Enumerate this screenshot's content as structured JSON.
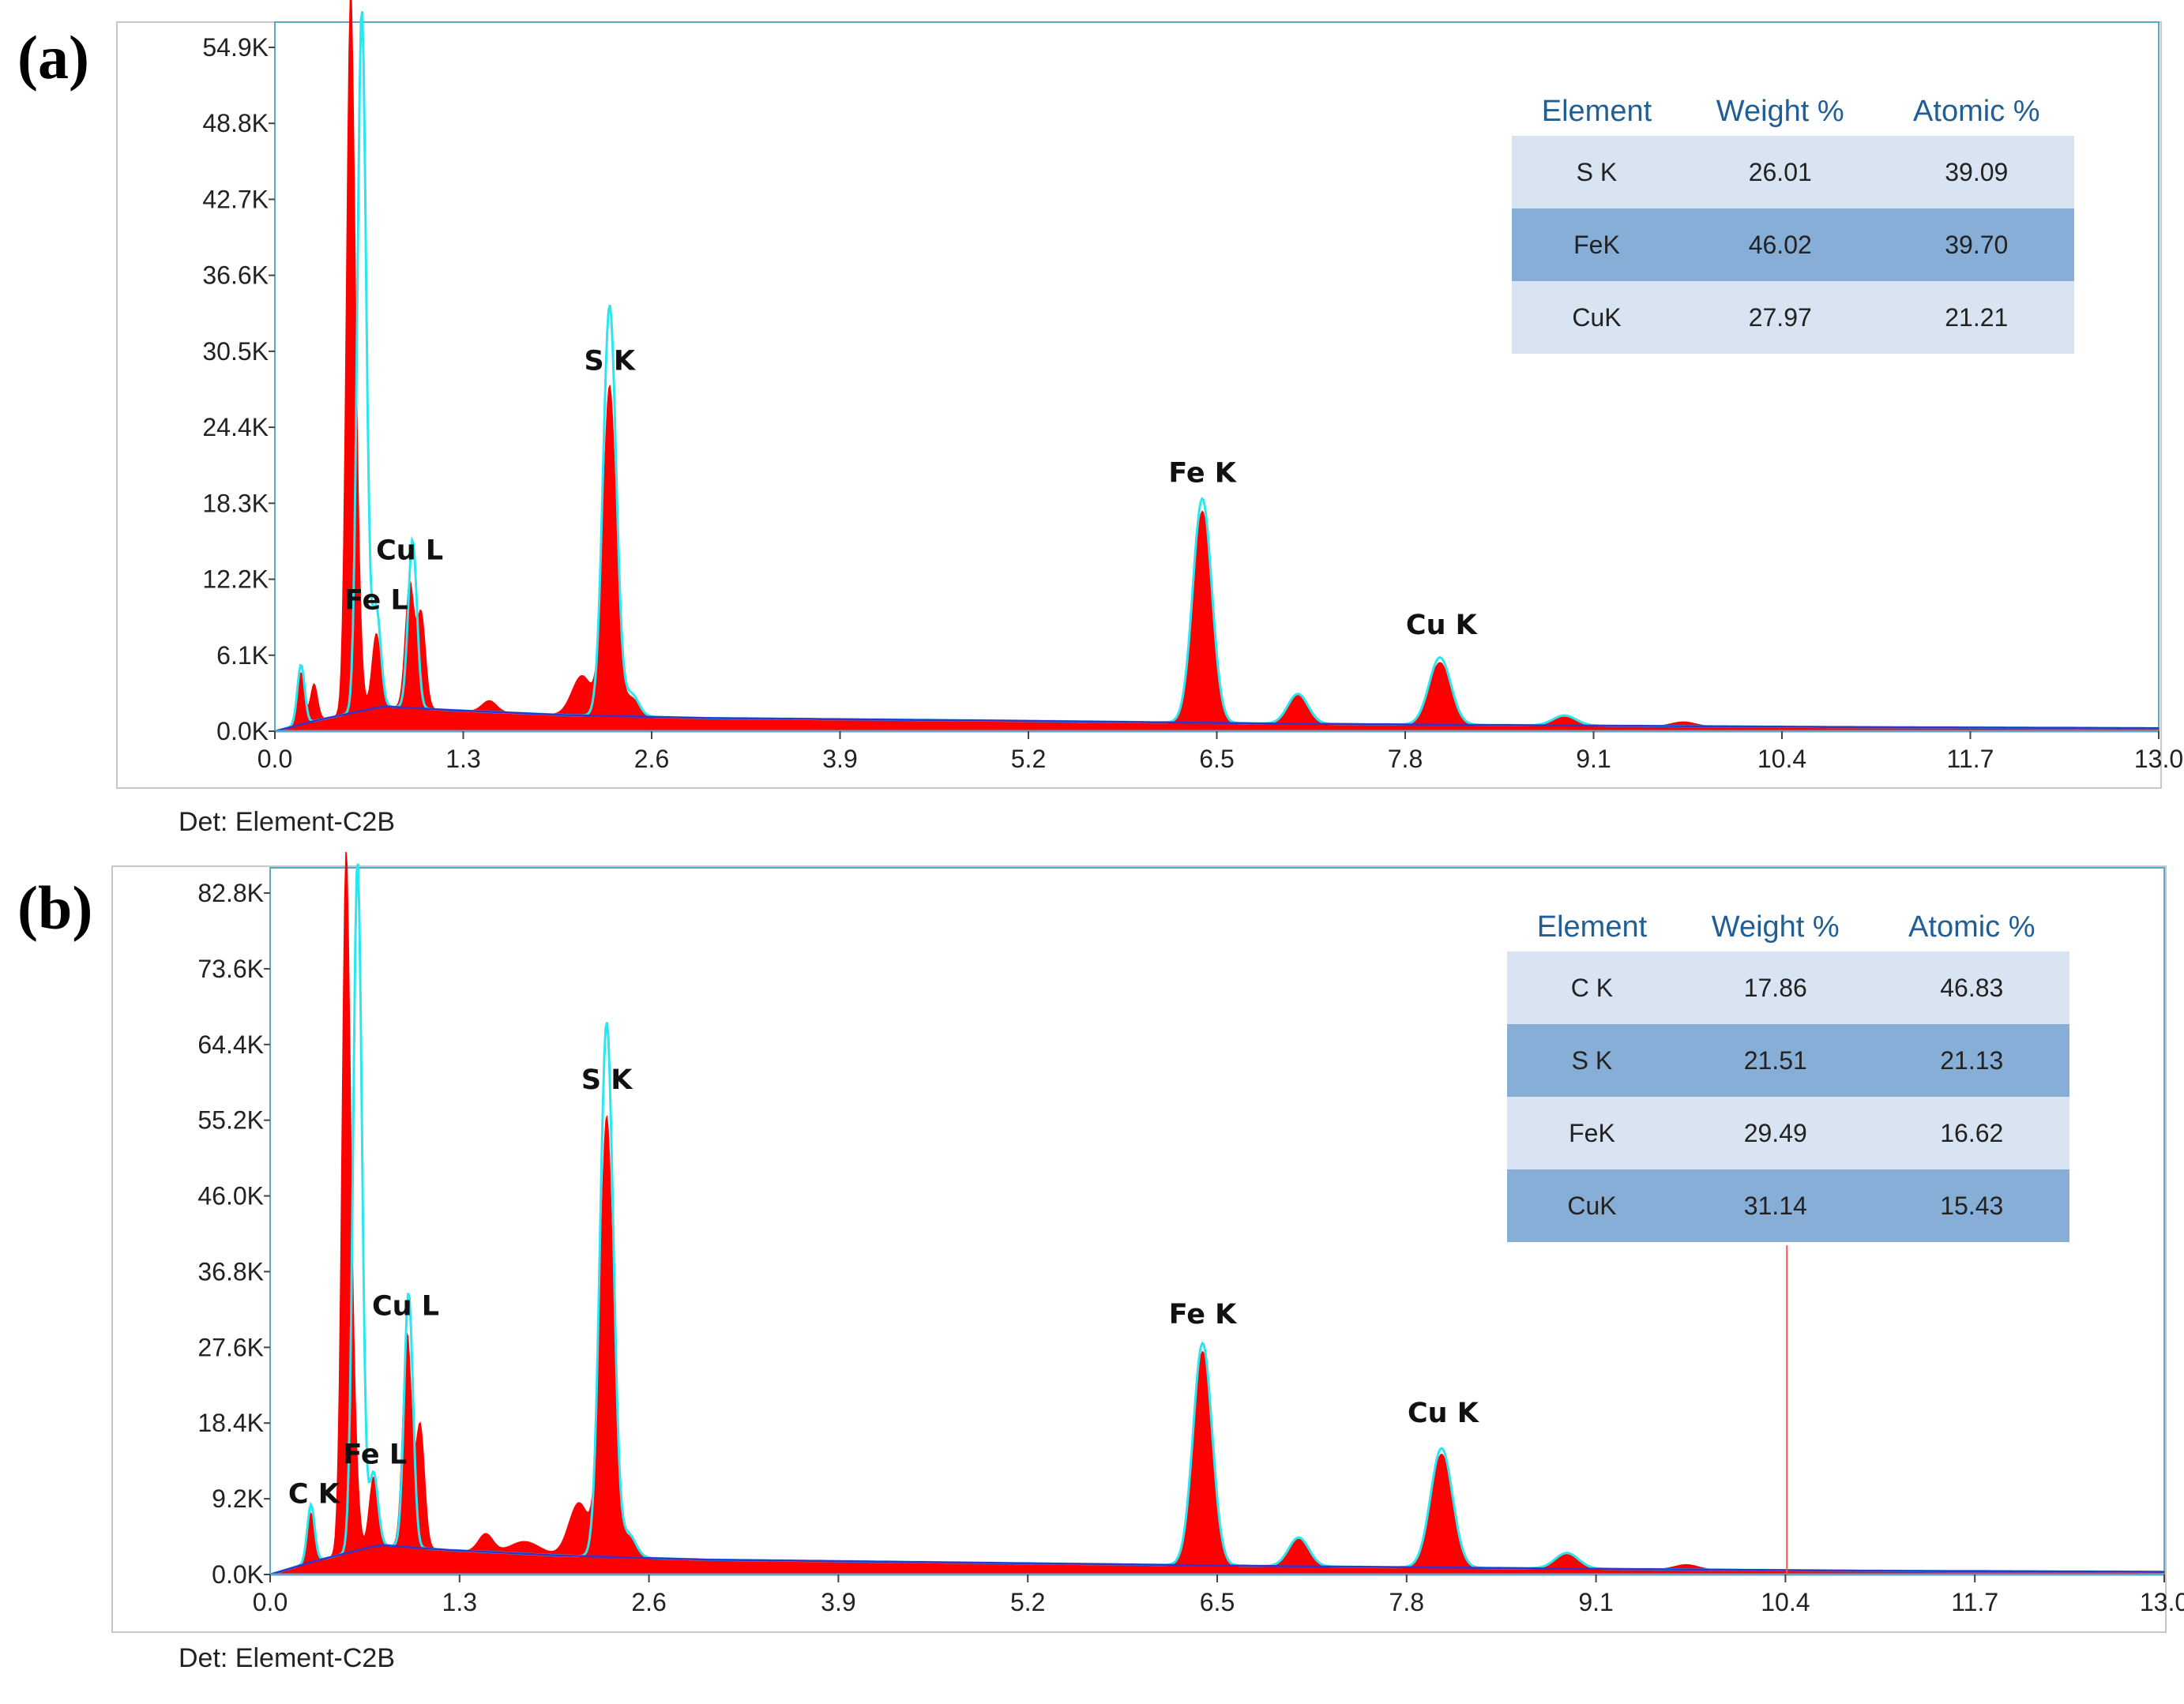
{
  "figure": {
    "panels": [
      {
        "id": "a",
        "label": "(a)",
        "detector": "Det: Element-C2B",
        "table": {
          "headers": [
            "Element",
            "Weight %",
            "Atomic %"
          ],
          "rows": [
            [
              "S K",
              "26.01",
              "39.09"
            ],
            [
              "FeK",
              "46.02",
              "39.70"
            ],
            [
              "CuK",
              "27.97",
              "21.21"
            ]
          ]
        }
      },
      {
        "id": "b",
        "label": "(b)",
        "detector": "Det: Element-C2B",
        "table": {
          "headers": [
            "Element",
            "Weight %",
            "Atomic %"
          ],
          "rows": [
            [
              "C K",
              "17.86",
              "46.83"
            ],
            [
              "S K",
              "21.51",
              "21.13"
            ],
            [
              "FeK",
              "29.49",
              "16.62"
            ],
            [
              "CuK",
              "31.14",
              "15.43"
            ]
          ]
        }
      }
    ]
  },
  "colors": {
    "spectrum_fill": "#ff0000",
    "overlay_line": "#29e6f0",
    "background_line": "#3333cc",
    "frame": "#5aa9c9",
    "marker": "#ff5555"
  },
  "chart_data": [
    {
      "type": "area",
      "panel": "a",
      "xlim": [
        0.0,
        13.0
      ],
      "ylim": [
        0,
        54900
      ],
      "x_ticks": [
        "0.0",
        "1.3",
        "2.6",
        "3.9",
        "5.2",
        "6.5",
        "7.8",
        "9.1",
        "10.4",
        "11.7",
        "13.0"
      ],
      "y_ticks": [
        "0.0K",
        "6.1K",
        "12.2K",
        "18.3K",
        "24.4K",
        "30.5K",
        "36.6K",
        "42.7K",
        "48.8K",
        "54.9K"
      ],
      "peak_labels": [
        {
          "text": "S  K",
          "x": 2.31,
          "y": 29000
        },
        {
          "text": "Fe K",
          "x": 6.4,
          "y": 20000
        },
        {
          "text": "Cu L",
          "x": 0.93,
          "y": 13800
        },
        {
          "text": "Fe L",
          "x": 0.7,
          "y": 9800
        },
        {
          "text": "Cu K",
          "x": 8.05,
          "y": 7800
        }
      ],
      "peaks": [
        {
          "x": 0.18,
          "y": 4200,
          "w": 0.025
        },
        {
          "x": 0.27,
          "y": 3000,
          "w": 0.025
        },
        {
          "x": 0.52,
          "y": 53000,
          "w": 0.028
        },
        {
          "x": 0.56,
          "y": 12000,
          "w": 0.03
        },
        {
          "x": 0.7,
          "y": 6000,
          "w": 0.03
        },
        {
          "x": 0.93,
          "y": 10000,
          "w": 0.03
        },
        {
          "x": 1.01,
          "y": 7600,
          "w": 0.03
        },
        {
          "x": 1.48,
          "y": 900,
          "w": 0.05
        },
        {
          "x": 2.12,
          "y": 3200,
          "w": 0.07
        },
        {
          "x": 2.31,
          "y": 26500,
          "w": 0.045
        },
        {
          "x": 2.46,
          "y": 1500,
          "w": 0.05
        },
        {
          "x": 6.4,
          "y": 17000,
          "w": 0.065
        },
        {
          "x": 7.06,
          "y": 2300,
          "w": 0.07
        },
        {
          "x": 8.04,
          "y": 5000,
          "w": 0.075
        },
        {
          "x": 8.9,
          "y": 700,
          "w": 0.08
        },
        {
          "x": 9.72,
          "y": 350,
          "w": 0.08
        }
      ],
      "overlay_peaks": [
        {
          "x": 0.18,
          "y": 4800,
          "w": 0.025
        },
        {
          "x": 0.6,
          "y": 56500,
          "w": 0.03
        },
        {
          "x": 0.7,
          "y": 8000,
          "w": 0.03
        },
        {
          "x": 0.95,
          "y": 13500,
          "w": 0.03
        },
        {
          "x": 2.31,
          "y": 33000,
          "w": 0.045
        },
        {
          "x": 2.46,
          "y": 1800,
          "w": 0.05
        },
        {
          "x": 6.4,
          "y": 18000,
          "w": 0.065
        },
        {
          "x": 7.06,
          "y": 2400,
          "w": 0.07
        },
        {
          "x": 8.04,
          "y": 5400,
          "w": 0.075
        },
        {
          "x": 8.9,
          "y": 800,
          "w": 0.08
        }
      ],
      "background": [
        [
          0.0,
          0
        ],
        [
          0.3,
          900
        ],
        [
          0.75,
          2000
        ],
        [
          1.2,
          1700
        ],
        [
          2.0,
          1300
        ],
        [
          3.0,
          1050
        ],
        [
          5.0,
          850
        ],
        [
          7.0,
          600
        ],
        [
          9.0,
          450
        ],
        [
          11.0,
          320
        ],
        [
          13.0,
          240
        ]
      ]
    },
    {
      "type": "area",
      "panel": "b",
      "xlim": [
        0.0,
        13.0
      ],
      "ylim": [
        0,
        82800
      ],
      "x_ticks": [
        "0.0",
        "1.3",
        "2.6",
        "3.9",
        "5.2",
        "6.5",
        "7.8",
        "9.1",
        "10.4",
        "11.7",
        "13.0"
      ],
      "y_ticks": [
        "0.0K",
        "9.2K",
        "18.4K",
        "27.6K",
        "36.8K",
        "46.0K",
        "55.2K",
        "64.4K",
        "73.6K",
        "82.8K"
      ],
      "peak_labels": [
        {
          "text": "S  K",
          "x": 2.31,
          "y": 59000
        },
        {
          "text": "Fe K",
          "x": 6.4,
          "y": 30500
        },
        {
          "text": "Cu L",
          "x": 0.93,
          "y": 31500
        },
        {
          "text": "Fe L",
          "x": 0.72,
          "y": 13500
        },
        {
          "text": "C  K",
          "x": 0.3,
          "y": 8700
        },
        {
          "text": "Cu K",
          "x": 8.05,
          "y": 18500
        }
      ],
      "peaks": [
        {
          "x": 0.28,
          "y": 6000,
          "w": 0.025
        },
        {
          "x": 0.52,
          "y": 82000,
          "w": 0.028
        },
        {
          "x": 0.57,
          "y": 15000,
          "w": 0.03
        },
        {
          "x": 0.71,
          "y": 8500,
          "w": 0.03
        },
        {
          "x": 0.94,
          "y": 26000,
          "w": 0.03
        },
        {
          "x": 1.03,
          "y": 15000,
          "w": 0.03
        },
        {
          "x": 1.48,
          "y": 2200,
          "w": 0.05
        },
        {
          "x": 1.75,
          "y": 1500,
          "w": 0.1
        },
        {
          "x": 2.12,
          "y": 6500,
          "w": 0.07
        },
        {
          "x": 2.31,
          "y": 53500,
          "w": 0.045
        },
        {
          "x": 2.46,
          "y": 2500,
          "w": 0.05
        },
        {
          "x": 6.4,
          "y": 26000,
          "w": 0.065
        },
        {
          "x": 7.06,
          "y": 3300,
          "w": 0.07
        },
        {
          "x": 8.04,
          "y": 13800,
          "w": 0.075
        },
        {
          "x": 8.9,
          "y": 1800,
          "w": 0.08
        },
        {
          "x": 9.72,
          "y": 600,
          "w": 0.08
        }
      ],
      "overlay_peaks": [
        {
          "x": 0.28,
          "y": 7000,
          "w": 0.025
        },
        {
          "x": 0.6,
          "y": 84000,
          "w": 0.03
        },
        {
          "x": 0.71,
          "y": 9000,
          "w": 0.03
        },
        {
          "x": 0.95,
          "y": 31000,
          "w": 0.03
        },
        {
          "x": 2.31,
          "y": 65000,
          "w": 0.045
        },
        {
          "x": 2.46,
          "y": 2800,
          "w": 0.05
        },
        {
          "x": 6.4,
          "y": 27000,
          "w": 0.065
        },
        {
          "x": 7.06,
          "y": 3500,
          "w": 0.07
        },
        {
          "x": 8.04,
          "y": 14500,
          "w": 0.075
        },
        {
          "x": 8.9,
          "y": 1900,
          "w": 0.08
        }
      ],
      "background": [
        [
          0.0,
          0
        ],
        [
          0.3,
          1600
        ],
        [
          0.75,
          3600
        ],
        [
          1.2,
          3000
        ],
        [
          2.0,
          2300
        ],
        [
          3.0,
          1800
        ],
        [
          5.0,
          1400
        ],
        [
          7.0,
          1000
        ],
        [
          9.0,
          700
        ],
        [
          11.0,
          450
        ],
        [
          13.0,
          320
        ]
      ],
      "markers": [
        {
          "x": 10.41,
          "y": 40000
        }
      ]
    }
  ]
}
